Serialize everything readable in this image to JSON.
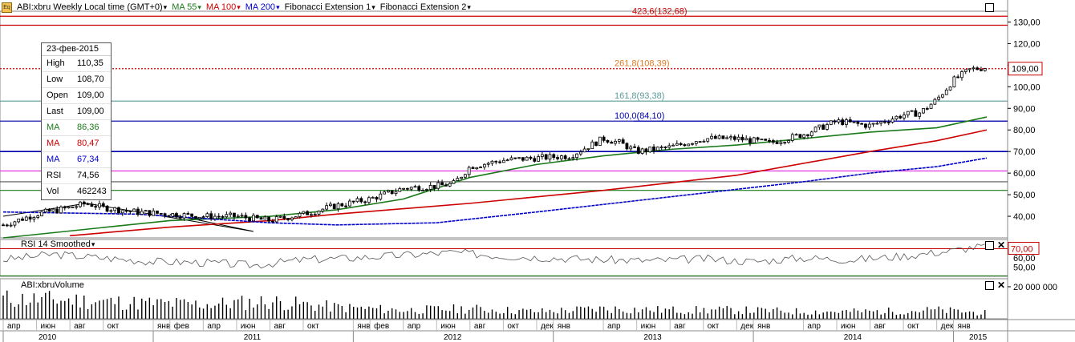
{
  "header": {
    "symbol": "ABI:xbru Weekly Local time (GMT+0)",
    "ma55": "MA 55",
    "ma100": "MA 100",
    "ma200": "MA 200",
    "fib1": "Fibonacci Extension 1",
    "fib2": "Fibonacci Extension 2",
    "icon_text": "Eq"
  },
  "info_box": {
    "date": "23-фев-2015",
    "rows": [
      {
        "k": "High",
        "v": "110,35",
        "color": "#000000"
      },
      {
        "k": "Low",
        "v": "108,70",
        "color": "#000000"
      },
      {
        "k": "Open",
        "v": "109,00",
        "color": "#000000"
      },
      {
        "k": "Last",
        "v": "109,00",
        "color": "#000000"
      },
      {
        "k": "MA",
        "v": "86,36",
        "color": "#1a7a1a"
      },
      {
        "k": "MA",
        "v": "80,47",
        "color": "#cc0000"
      },
      {
        "k": "MA",
        "v": "67,34",
        "color": "#0000cc"
      },
      {
        "k": "RSI",
        "v": "74,56",
        "color": "#000000"
      },
      {
        "k": "Vol",
        "v": "462243",
        "color": "#000000"
      }
    ]
  },
  "rsi_panel": {
    "title": "RSI 14 Smoothed",
    "level_label": "70,00",
    "ticks": [
      "60,00",
      "50,00"
    ]
  },
  "volume_panel": {
    "title": "ABI:xbruVolume",
    "tick": "20 000 000"
  },
  "last_price_label": "109,00",
  "fib_labels": [
    {
      "text": "423,6(132,68)",
      "value": 132.68,
      "color": "#cc0000"
    },
    {
      "text": "261,8(108,39)",
      "value": 108.39,
      "color": "#e07a20"
    },
    {
      "text": "161,8(93,38)",
      "value": 93.38,
      "color": "#5b9a9a"
    },
    {
      "text": "100,0(84,10)",
      "value": 84.1,
      "color": "#0000aa"
    }
  ],
  "colors": {
    "ma55": "#1a7a1a",
    "ma100": "#cc0000",
    "ma200": "#0000cc",
    "candle": "#000000",
    "grid": "#e6e6e6"
  },
  "chart_data": {
    "type": "line",
    "title": "ABI:xbru Weekly",
    "ylim": [
      30,
      135
    ],
    "y_ticks": [
      "130,00",
      "120,00",
      "110,00",
      "100,00",
      "90,00",
      "80,00",
      "70,00",
      "60,00",
      "50,00",
      "40,00"
    ],
    "y_tick_values": [
      130,
      120,
      110,
      100,
      90,
      80,
      70,
      60,
      50,
      40
    ],
    "x_month_labels": [
      "апр",
      "июн",
      "авг",
      "окт",
      "янв",
      "фев",
      "апр",
      "июн",
      "авг",
      "окт",
      "янв",
      "фев",
      "апр",
      "июн",
      "авг",
      "окт",
      "дек",
      "янв",
      "апр",
      "июн",
      "авг",
      "окт",
      "дек",
      "янв",
      "апр",
      "июн",
      "авг",
      "окт",
      "дек",
      "янв"
    ],
    "x_month_index": [
      0,
      2,
      4,
      6,
      9,
      10,
      12,
      14,
      16,
      18,
      21,
      22,
      24,
      26,
      28,
      30,
      32,
      33,
      36,
      38,
      40,
      42,
      44,
      45,
      48,
      50,
      52,
      54,
      56,
      57
    ],
    "x_year_labels": [
      "2010",
      "2011",
      "2012",
      "2013",
      "2014",
      "2015"
    ],
    "x_year_index": [
      0,
      9,
      21,
      33,
      45,
      57
    ],
    "x_range_months": [
      0,
      59
    ],
    "price_series": {
      "name": "ABI:xbru",
      "month_index": [
        0,
        2,
        4,
        5,
        6,
        8,
        10,
        12,
        14,
        16,
        18,
        20,
        22,
        24,
        26,
        27,
        28,
        30,
        32,
        34,
        36,
        37,
        38,
        40,
        42,
        44,
        46,
        48,
        50,
        52,
        54,
        55,
        56,
        57,
        58,
        59
      ],
      "close": [
        36,
        41,
        44,
        46,
        44,
        42,
        41,
        40,
        40,
        38,
        41,
        45,
        48,
        53,
        54,
        55,
        63,
        66,
        67,
        68,
        76,
        74,
        70,
        72,
        76,
        76,
        74,
        78,
        84,
        82,
        87,
        88,
        94,
        103,
        108,
        109
      ]
    },
    "ma_series": [
      {
        "name": "MA 55",
        "month_index": [
          0,
          10,
          16,
          20,
          24,
          28,
          32,
          36,
          40,
          44,
          48,
          52,
          56,
          59
        ],
        "values": [
          30,
          38,
          40,
          43,
          48,
          58,
          64,
          68,
          71,
          73,
          76,
          79,
          81,
          86
        ]
      },
      {
        "name": "MA 100",
        "month_index": [
          4,
          10,
          16,
          20,
          28,
          36,
          44,
          52,
          56,
          59
        ],
        "values": [
          31,
          35,
          38,
          41,
          46,
          52,
          59,
          70,
          75,
          80
        ]
      },
      {
        "name": "MA 200",
        "month_index": [
          0,
          8,
          12,
          16,
          20,
          26,
          32,
          40,
          48,
          52,
          56,
          59
        ],
        "values": [
          42,
          41,
          39,
          37,
          36,
          37,
          42,
          49,
          56,
          60,
          63,
          67
        ]
      }
    ],
    "trendlines": [
      {
        "name": "fib-leg-1",
        "month_index": [
          0,
          5,
          15
        ],
        "values": [
          40,
          46,
          33
        ]
      },
      {
        "name": "fib-leg-2",
        "month_index": [
          10,
          15
        ],
        "values": [
          41,
          33
        ]
      }
    ],
    "horizontal_levels": [
      {
        "value": 132.68,
        "color": "#cc0000",
        "style": "solid"
      },
      {
        "value": 128.5,
        "color": "#cc0000",
        "style": "solid"
      },
      {
        "value": 108.39,
        "color": "#cc0000",
        "style": "dotted"
      },
      {
        "value": 93.38,
        "color": "#5b9a9a",
        "style": "solid"
      },
      {
        "value": 84.1,
        "color": "#0000aa",
        "style": "solid"
      },
      {
        "value": 70.0,
        "color": "#0000aa",
        "style": "solid"
      },
      {
        "value": 61.0,
        "color": "#e020e0",
        "style": "solid"
      },
      {
        "value": 56.0,
        "color": "#555555",
        "style": "solid"
      },
      {
        "value": 52.0,
        "color": "#1a7a1a",
        "style": "solid"
      }
    ],
    "rsi_series": {
      "name": "RSI 14 Smoothed",
      "month_index": [
        0,
        3,
        6,
        9,
        12,
        15,
        18,
        21,
        24,
        27,
        30,
        33,
        36,
        39,
        42,
        45,
        48,
        51,
        54,
        57,
        59
      ],
      "values": [
        58,
        64,
        60,
        56,
        55,
        52,
        58,
        60,
        63,
        66,
        62,
        60,
        58,
        57,
        59,
        56,
        60,
        58,
        62,
        68,
        74
      ]
    },
    "volume_series": {
      "name": "Volume",
      "month_index": [
        0,
        4,
        8,
        12,
        16,
        20,
        24,
        28,
        32,
        36,
        40,
        44,
        48,
        52,
        56,
        59
      ],
      "values": [
        14,
        13,
        11,
        10,
        12,
        8,
        6,
        7,
        5,
        7,
        6,
        6,
        5,
        5,
        6,
        4
      ]
    }
  }
}
